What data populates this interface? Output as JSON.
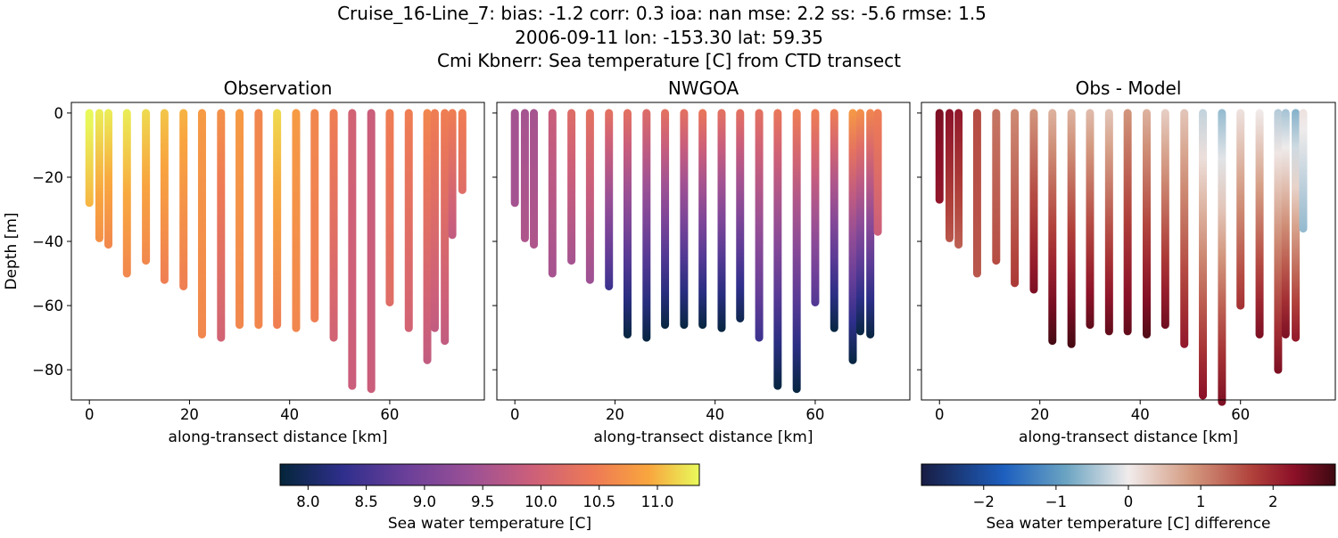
{
  "title": [
    "Cruise_16-Line_7: bias: -1.2  corr: 0.3  ioa: nan  mse: 2.2  ss: -5.6  rmse: 1.5",
    "2006-09-11 lon: -153.30 lat: 59.35",
    "Cmi Kbnerr: Sea temperature [C] from CTD transect"
  ],
  "chart_data": [
    {
      "type": "scatter",
      "title": "Observation",
      "xlabel": "along-transect distance [km]",
      "ylabel": "Depth [m]",
      "cmap": "thermal",
      "xlim": [
        -3.6,
        78.9
      ],
      "ylim": [
        -89.4,
        3.3
      ],
      "xticks": [
        0,
        20,
        40,
        60
      ],
      "yticks": [
        {
          "value": -80,
          "label": "−80"
        },
        {
          "value": -60,
          "label": "−60"
        },
        {
          "value": -40,
          "label": "−40"
        },
        {
          "value": -20,
          "label": "−20"
        },
        0
      ],
      "x": [
        0,
        2,
        3.8,
        7.5,
        11.3,
        15,
        18.8,
        22.5,
        26.3,
        30,
        33.8,
        37.5,
        41.3,
        45,
        48.8,
        52.5,
        56.3,
        60,
        63.8,
        67.5,
        69,
        71,
        72.5,
        74.5
      ],
      "depth": [
        -28,
        -39,
        -41,
        -50,
        -46,
        -52,
        -54,
        -69,
        -70,
        -66,
        -66,
        -66,
        -67,
        -64,
        -70,
        -85,
        -86,
        -59,
        -67,
        -77,
        -67,
        -71,
        -38,
        -24
      ],
      "top_value": [
        11.4,
        11.3,
        11.3,
        11.3,
        11.2,
        11.1,
        11.0,
        10.8,
        10.7,
        10.8,
        10.6,
        11.2,
        10.8,
        10.6,
        10.5,
        10.0,
        9.9,
        10.5,
        10.5,
        10.6,
        10.5,
        10.5,
        10.5,
        10.5
      ],
      "bottom_value": [
        11.0,
        10.7,
        10.6,
        10.6,
        10.6,
        10.5,
        10.5,
        10.6,
        10.0,
        10.6,
        10.6,
        10.5,
        10.6,
        10.5,
        10.0,
        9.9,
        9.9,
        10.2,
        10.0,
        9.8,
        9.8,
        9.8,
        9.8,
        10.2
      ]
    },
    {
      "type": "scatter",
      "title": "NWGOA",
      "xlabel": "along-transect distance [km]",
      "cmap": "thermal",
      "xlim": [
        -3.6,
        78.9
      ],
      "ylim": [
        -89.4,
        3.3
      ],
      "xticks": [
        0,
        20,
        40,
        60
      ],
      "yticks": [
        -80,
        -60,
        -40,
        -20,
        0
      ],
      "x": [
        0,
        2,
        3.8,
        7.5,
        11.3,
        15,
        18.8,
        22.5,
        26.3,
        30,
        33.8,
        37.5,
        41.3,
        45,
        48.8,
        52.5,
        56.3,
        60,
        63.8,
        67.5,
        69,
        71,
        72.5
      ],
      "depth": [
        -28,
        -39,
        -41,
        -50,
        -46,
        -52,
        -54,
        -69,
        -70,
        -66,
        -66,
        -66,
        -67,
        -64,
        -70,
        -85,
        -86,
        -59,
        -67,
        -77,
        -68,
        -69,
        -37
      ],
      "top_value": [
        9.5,
        9.5,
        9.5,
        9.9,
        10.2,
        10.3,
        10.3,
        10.3,
        10.2,
        10.3,
        10.3,
        10.4,
        10.3,
        10.3,
        10.3,
        10.4,
        10.5,
        10.5,
        10.5,
        10.8,
        10.7,
        10.6,
        10.5
      ],
      "bottom_value": [
        9.5,
        9.6,
        9.6,
        9.5,
        9.5,
        9.4,
        8.4,
        7.8,
        7.8,
        7.8,
        7.8,
        7.8,
        7.8,
        7.9,
        8.4,
        7.8,
        7.8,
        8.6,
        7.8,
        7.8,
        7.8,
        7.8,
        9.9
      ]
    },
    {
      "type": "scatter",
      "title": "Obs - Model",
      "xlabel": "along-transect distance [km]",
      "cmap": "balance",
      "xlim": [
        -3.6,
        78.9
      ],
      "ylim": [
        -89.4,
        3.3
      ],
      "xticks": [
        0,
        20,
        40,
        60
      ],
      "yticks": [
        -80,
        -60,
        -40,
        -20,
        0
      ],
      "x": [
        0,
        2,
        3.8,
        7.5,
        11.3,
        15,
        18.8,
        22.5,
        26.3,
        30,
        33.8,
        37.5,
        41.3,
        45,
        48.8,
        52.5,
        56.3,
        60,
        63.8,
        67.5,
        69,
        71,
        72.5
      ],
      "depth": [
        -27,
        -39,
        -41,
        -50,
        -46,
        -53,
        -55,
        -71,
        -72,
        -66,
        -68,
        -68,
        -69,
        -66,
        -72,
        -88,
        -90,
        -60,
        -69,
        -80,
        -69,
        -70,
        -36
      ],
      "top_value": [
        2.4,
        2.3,
        2.2,
        1.6,
        1.2,
        1.0,
        0.9,
        0.6,
        0.6,
        0.5,
        0.4,
        0.9,
        0.6,
        0.3,
        0.4,
        -0.3,
        -0.6,
        0.1,
        0,
        -0.4,
        -0.5,
        -0.7,
        0.1
      ],
      "bottom_value": [
        2.2,
        1.5,
        1.4,
        1.5,
        1.6,
        1.8,
        2.4,
        2.8,
        2.8,
        2.6,
        2.6,
        2.6,
        2.7,
        2.5,
        2.2,
        2.3,
        2.4,
        1.9,
        2.4,
        2.4,
        2.4,
        2.2,
        -0.6
      ]
    },
    {
      "type": "colorbar",
      "label": "Sea water temperature [C]",
      "cmap": "thermal",
      "clim": [
        7.76,
        11.36
      ],
      "ticks": [
        {
          "value": 8,
          "label": "8.0"
        },
        {
          "value": 8.5,
          "label": "8.5"
        },
        {
          "value": 9,
          "label": "9.0"
        },
        {
          "value": 9.5,
          "label": "9.5"
        },
        {
          "value": 10,
          "label": "10.0"
        },
        {
          "value": 10.5,
          "label": "10.5"
        },
        {
          "value": 11,
          "label": "11.0"
        }
      ]
    },
    {
      "type": "colorbar",
      "label": "Sea water temperature [C] difference",
      "cmap": "balance",
      "clim": [
        -2.86,
        2.86
      ],
      "ticks": [
        {
          "value": -2,
          "label": "−2"
        },
        {
          "value": -1,
          "label": "−1"
        },
        0,
        1,
        2
      ]
    }
  ]
}
